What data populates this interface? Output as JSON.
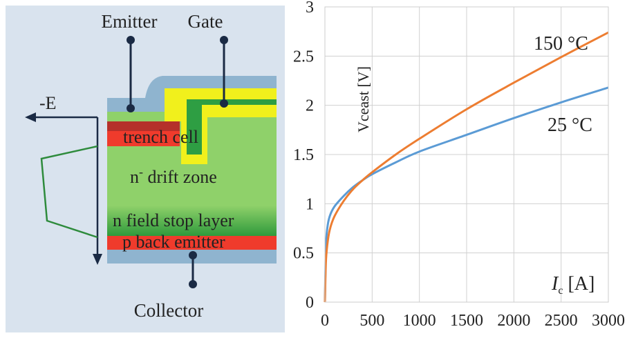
{
  "diagram": {
    "labels": {
      "emitter": "Emitter",
      "gate": "Gate",
      "collector": "Collector",
      "field_axis": "-E",
      "trench_cell": "trench cell",
      "drift_zone_n": "n",
      "drift_zone_sup": "-",
      "drift_zone_rest": " drift zone",
      "field_stop": "n field stop layer",
      "back_emitter": "p back emitter"
    },
    "colors": {
      "panel_bg": "#d9e3ee",
      "passivation": "#8fb4cf",
      "drift": "#8fd16a",
      "field_stop": "#2f9a3c",
      "emitter_layer": "#ef3b2c",
      "p_body": "#b5302a",
      "gate_oxide": "#f1f01c",
      "gate_poly": "#2e9e43",
      "field_curve": "#2e8b3c",
      "wire": "#1a2a44"
    }
  },
  "chart_data": {
    "type": "line",
    "title": "",
    "xlabel": "Ic [A]",
    "xlabel_italic": "I",
    "xlabel_sub": "c",
    "xlabel_unit": " [A]",
    "ylabel": "Vceast [V]",
    "xlim": [
      0,
      3000
    ],
    "ylim": [
      0,
      3
    ],
    "x_ticks": [
      0,
      500,
      1000,
      1500,
      2000,
      2500,
      3000
    ],
    "x_tick_labels": [
      "0",
      "500",
      "1000",
      "1500",
      "2000",
      "2500",
      "3000"
    ],
    "y_ticks": [
      0,
      0.5,
      1,
      1.5,
      2,
      2.5,
      3
    ],
    "y_tick_labels": [
      "0",
      "0.5",
      "1",
      "1.5",
      "2",
      "2.5",
      "3"
    ],
    "grid": true,
    "series": [
      {
        "name": "25 °C",
        "color": "#5b9bd5",
        "x": [
          0,
          10,
          25,
          50,
          100,
          200,
          300,
          400,
          500,
          750,
          1000,
          1500,
          2000,
          2500,
          3000
        ],
        "y": [
          0,
          0.55,
          0.75,
          0.87,
          0.97,
          1.08,
          1.17,
          1.24,
          1.3,
          1.42,
          1.53,
          1.7,
          1.87,
          2.03,
          2.18
        ]
      },
      {
        "name": "150 °C",
        "color": "#ed7d31",
        "x": [
          0,
          10,
          25,
          50,
          100,
          200,
          300,
          400,
          500,
          750,
          1000,
          1500,
          2000,
          2500,
          3000
        ],
        "y": [
          0,
          0.4,
          0.58,
          0.73,
          0.87,
          1.03,
          1.15,
          1.24,
          1.32,
          1.5,
          1.66,
          1.96,
          2.23,
          2.49,
          2.74
        ]
      }
    ]
  }
}
